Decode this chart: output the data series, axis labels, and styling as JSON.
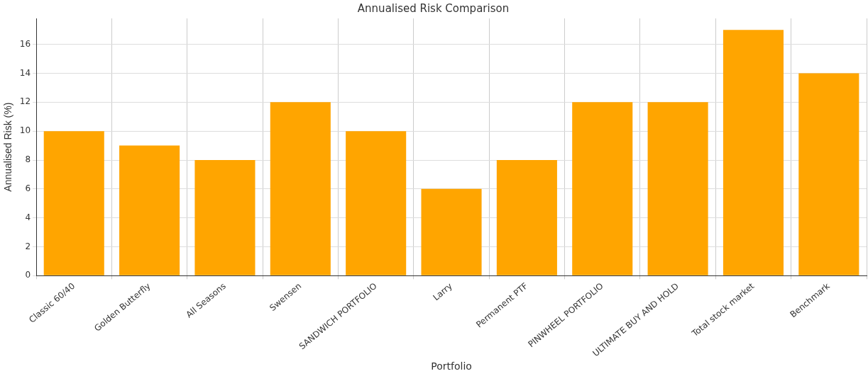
{
  "chart_data": {
    "type": "bar",
    "title": "Annualised Risk Comparison",
    "xlabel": "Portfolio",
    "ylabel": "Annualised Risk (%)",
    "categories": [
      "Classic 60/40",
      "Golden Butterfly",
      "All Seasons",
      "Swensen",
      "SANDWICH PORTFOLIO",
      "Larry",
      "Permanent PTF",
      "PINWHEEL PORTFOLIO",
      "ULTIMATE BUY AND HOLD",
      "Total stock market",
      "Benchmark"
    ],
    "values": [
      10,
      9,
      8,
      12,
      10,
      6,
      8,
      12,
      12,
      17,
      14
    ],
    "color": "#ffa500",
    "ylim": [
      0,
      17.8
    ],
    "yticks": [
      0,
      2,
      4,
      6,
      8,
      10,
      12,
      14,
      16
    ],
    "grid": true,
    "legend": false
  }
}
